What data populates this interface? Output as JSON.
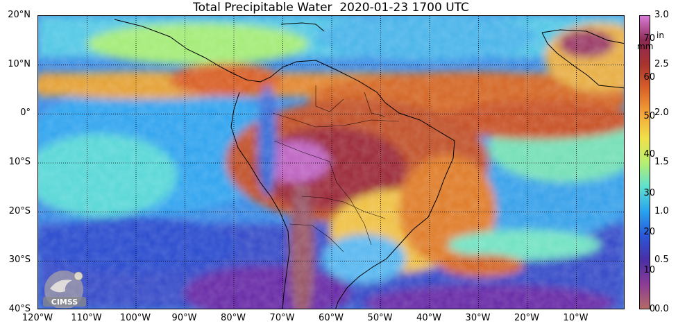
{
  "title": "Total Precipitable Water  2020-01-23 1700 UTC",
  "map": {
    "lat_labels": [
      "20°N",
      "10°N",
      "0°",
      "10°S",
      "20°S",
      "30°S",
      "40°S"
    ],
    "lon_labels": [
      "120°W",
      "110°W",
      "100°W",
      "90°W",
      "80°W",
      "70°W",
      "60°W",
      "50°W",
      "40°W",
      "30°W",
      "20°W",
      "10°W"
    ],
    "lon_range": [
      -120,
      0
    ],
    "lat_range": [
      -40,
      20
    ],
    "grid": "dotted"
  },
  "colorbar": {
    "mm_unit": "mm",
    "in_unit": "in",
    "mm_ticks": [
      "70",
      "60",
      "50",
      "40",
      "30",
      "20",
      "10",
      "0"
    ],
    "mm_values": [
      70,
      60,
      50,
      40,
      30,
      20,
      10,
      0
    ],
    "in_ticks": [
      "3.0",
      "2.5",
      "2.0",
      "1.5",
      "1.0",
      "0.5",
      "0.0"
    ],
    "in_values": [
      3.0,
      2.5,
      2.0,
      1.5,
      1.0,
      0.5,
      0.0
    ],
    "mm_max": 76.2,
    "colors": [
      "#b46b66",
      "#8b3c96",
      "#4a2fa6",
      "#2a58d8",
      "#29a3ee",
      "#5fe0cf",
      "#b8ef6e",
      "#f1e04a",
      "#f4a538",
      "#d9622a",
      "#a8342f",
      "#8c2a55",
      "#d97bd8"
    ]
  },
  "logo": {
    "text": "CIMSS"
  }
}
